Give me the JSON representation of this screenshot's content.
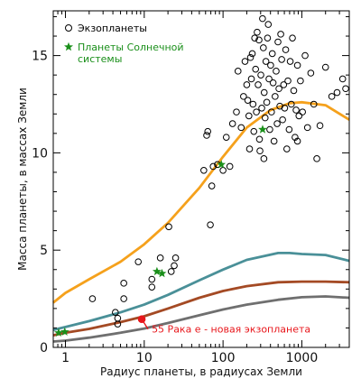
{
  "chart_data": {
    "type": "scatter",
    "xlabel": "Радиус планеты, в радиусах Земли",
    "ylabel": "Масса планеты, в массах Земли",
    "x_scale": "log",
    "xlim": [
      0.7,
      4000
    ],
    "ylim": [
      0,
      17.3
    ],
    "x_ticks": [
      1,
      10,
      100,
      1000
    ],
    "x_tick_labels": [
      "1",
      "10",
      "100",
      "1000"
    ],
    "y_ticks": [
      0,
      5,
      10,
      15
    ],
    "y_tick_labels": [
      "0",
      "5",
      "10",
      "15"
    ],
    "grid": false,
    "legend_position": "top-left",
    "colors": {
      "exoplanets": "#000000",
      "solar": "#1a8f1a",
      "target": "#e8161b",
      "target_label": "#e8161b",
      "curve_orange": "#f5a11c",
      "curve_teal": "#4a9098",
      "curve_brown": "#a44a24",
      "curve_gray": "#6f6f6f"
    },
    "legend": [
      {
        "label": "Экзопланеты",
        "marker": "circle",
        "color": "#000000"
      },
      {
        "label_lines": [
          "Планеты Солнечной",
          "системы"
        ],
        "marker": "star",
        "color": "#1a8f1a"
      }
    ],
    "series": [
      {
        "name": "Экзопланеты",
        "marker": "circle",
        "points": [
          [
            2.2,
            2.5
          ],
          [
            4.3,
            1.8
          ],
          [
            4.6,
            1.5
          ],
          [
            4.6,
            1.2
          ],
          [
            5.5,
            2.5
          ],
          [
            5.5,
            3.3
          ],
          [
            8.4,
            4.4
          ],
          [
            12.5,
            3.1
          ],
          [
            12.5,
            3.5
          ],
          [
            16.0,
            4.6
          ],
          [
            20.5,
            6.2
          ],
          [
            22.0,
            3.9
          ],
          [
            24.0,
            4.2
          ],
          [
            25.0,
            4.6
          ],
          [
            57.0,
            9.1
          ],
          [
            62.0,
            10.9
          ],
          [
            64.0,
            11.1
          ],
          [
            69.0,
            6.3
          ],
          [
            72.0,
            8.3
          ],
          [
            75.0,
            9.3
          ],
          [
            85.0,
            9.4
          ],
          [
            100.0,
            9.1
          ],
          [
            110.0,
            10.8
          ],
          [
            122.0,
            9.3
          ],
          [
            132.0,
            11.5
          ],
          [
            148.0,
            12.1
          ],
          [
            155.0,
            14.2
          ],
          [
            170.0,
            11.3
          ],
          [
            182.0,
            12.9
          ],
          [
            190.0,
            14.7
          ],
          [
            200.0,
            13.5
          ],
          [
            206.0,
            12.7
          ],
          [
            213.0,
            11.9
          ],
          [
            217.0,
            10.2
          ],
          [
            223.0,
            14.9
          ],
          [
            229.0,
            13.8
          ],
          [
            235.0,
            15.1
          ],
          [
            240.0,
            12.5
          ],
          [
            246.0,
            11.1
          ],
          [
            252.0,
            15.9
          ],
          [
            259.0,
            14.3
          ],
          [
            265.0,
            12.1
          ],
          [
            271.0,
            16.2
          ],
          [
            279.0,
            13.5
          ],
          [
            286.0,
            15.8
          ],
          [
            294.0,
            10.1
          ],
          [
            302.0,
            14.0
          ],
          [
            310.0,
            12.3
          ],
          [
            317.0,
            16.9
          ],
          [
            325.0,
            15.4
          ],
          [
            333.0,
            13.1
          ],
          [
            342.0,
            11.8
          ],
          [
            350.0,
            14.7
          ],
          [
            359.0,
            12.6
          ],
          [
            367.0,
            15.9
          ],
          [
            375.0,
            16.6
          ],
          [
            383.0,
            13.8
          ],
          [
            392.0,
            11.2
          ],
          [
            402.0,
            14.5
          ],
          [
            412.0,
            12.1
          ],
          [
            422.0,
            15.1
          ],
          [
            432.0,
            13.6
          ],
          [
            444.0,
            10.6
          ],
          [
            458.0,
            12.9
          ],
          [
            472.0,
            14.2
          ],
          [
            486.0,
            11.5
          ],
          [
            498.0,
            15.7
          ],
          [
            512.0,
            13.3
          ],
          [
            526.0,
            12.4
          ],
          [
            540.0,
            16.1
          ],
          [
            555.0,
            14.8
          ],
          [
            570.0,
            11.7
          ],
          [
            588.0,
            13.5
          ],
          [
            606.0,
            12.3
          ],
          [
            624.0,
            15.3
          ],
          [
            645.0,
            10.2
          ],
          [
            666.0,
            13.7
          ],
          [
            690.0,
            11.2
          ],
          [
            712.0,
            14.7
          ],
          [
            735.0,
            12.5
          ],
          [
            760.0,
            15.9
          ],
          [
            790.0,
            13.2
          ],
          [
            820.0,
            10.8
          ],
          [
            845.0,
            12.2
          ],
          [
            880.0,
            14.5
          ],
          [
            920.0,
            11.9
          ],
          [
            960.0,
            13.7
          ],
          [
            1020.0,
            12.1
          ],
          [
            1100.0,
            15.0
          ],
          [
            1180.0,
            11.3
          ],
          [
            1300.0,
            14.1
          ],
          [
            1420.0,
            12.5
          ],
          [
            1550.0,
            9.7
          ],
          [
            1700.0,
            11.4
          ],
          [
            2000.0,
            14.4
          ],
          [
            2400.0,
            12.9
          ],
          [
            2800.0,
            13.1
          ],
          [
            3300.0,
            13.8
          ],
          [
            3600.0,
            13.3
          ],
          [
            290.0,
            10.7
          ],
          [
            330.0,
            9.7
          ],
          [
            880.0,
            10.6
          ]
        ]
      },
      {
        "name": "Планеты Солнечной системы",
        "marker": "star",
        "points": [
          [
            0.82,
            0.75
          ],
          [
            0.98,
            0.8
          ],
          [
            14.5,
            3.9
          ],
          [
            16.8,
            3.8
          ],
          [
            95.0,
            9.4
          ],
          [
            318.0,
            11.2
          ]
        ]
      }
    ],
    "curves": [
      {
        "color": "#f5a11c",
        "x": [
          0.7,
          1.0,
          2.0,
          5.0,
          10.0,
          20.0,
          50.0,
          100.0,
          200.0,
          400.0,
          700.0,
          1000.0,
          2000.0,
          4000.0
        ],
        "y": [
          2.3,
          2.8,
          3.5,
          4.4,
          5.3,
          6.4,
          8.2,
          9.8,
          11.3,
          12.2,
          12.55,
          12.6,
          12.45,
          11.7
        ]
      },
      {
        "color": "#4a9098",
        "x": [
          0.7,
          1.0,
          2.0,
          5.0,
          10.0,
          20.0,
          50.0,
          100.0,
          200.0,
          500.0,
          700.0,
          1000.0,
          2000.0,
          4000.0
        ],
        "y": [
          0.9,
          1.05,
          1.35,
          1.8,
          2.2,
          2.7,
          3.45,
          4.0,
          4.5,
          4.85,
          4.85,
          4.8,
          4.75,
          4.45
        ]
      },
      {
        "color": "#a44a24",
        "x": [
          0.7,
          1.0,
          2.0,
          5.0,
          10.0,
          20.0,
          50.0,
          100.0,
          200.0,
          500.0,
          1000.0,
          2000.0,
          4000.0
        ],
        "y": [
          0.62,
          0.75,
          0.95,
          1.3,
          1.6,
          2.0,
          2.55,
          2.9,
          3.15,
          3.35,
          3.38,
          3.38,
          3.35
        ]
      },
      {
        "color": "#6f6f6f",
        "x": [
          0.7,
          1.0,
          2.0,
          5.0,
          10.0,
          20.0,
          50.0,
          100.0,
          200.0,
          500.0,
          1000.0,
          2000.0,
          4000.0
        ],
        "y": [
          0.3,
          0.35,
          0.5,
          0.75,
          0.97,
          1.25,
          1.65,
          1.95,
          2.2,
          2.45,
          2.58,
          2.62,
          2.55
        ]
      }
    ],
    "highlight": {
      "label": "55 Рака e - новая экзопланета",
      "x": 9.3,
      "y": 1.45
    }
  }
}
